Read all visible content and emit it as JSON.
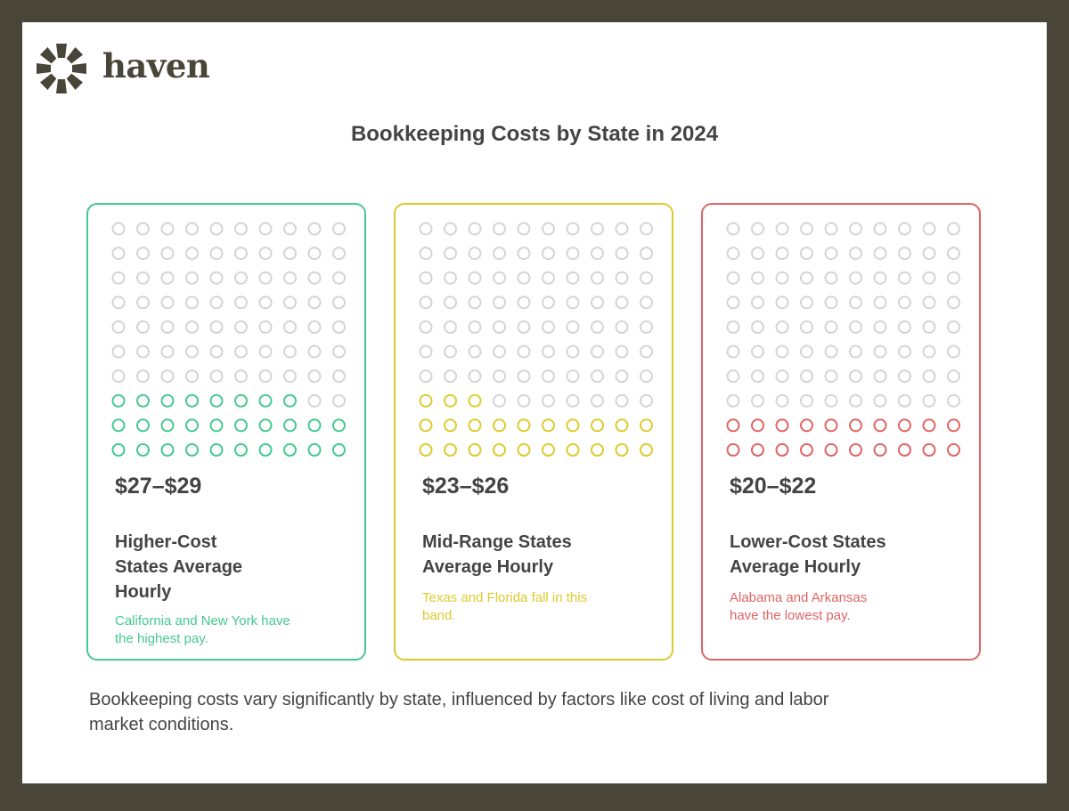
{
  "brand": "haven",
  "title": "Bookkeeping Costs by State in 2024",
  "cards": [
    {
      "range": "$27–$29",
      "heading": "Higher-Cost States Average Hourly",
      "note": "California and New York have the highest pay.",
      "filled": 28,
      "total": 100,
      "color": "#45c98f"
    },
    {
      "range": "$23–$26",
      "heading": "Mid-Range States Average Hourly",
      "note": "Texas and Florida fall in this band.",
      "filled": 23,
      "total": 100,
      "color": "#dccb2e"
    },
    {
      "range": "$20–$22",
      "heading": "Lower-Cost States Average Hourly",
      "note": "Alabama and Arkansas have the lowest pay.",
      "filled": 20,
      "total": 100,
      "color": "#e06464"
    }
  ],
  "footer": "Bookkeeping costs vary significantly by state, influenced by factors like cost of living and labor market conditions."
}
